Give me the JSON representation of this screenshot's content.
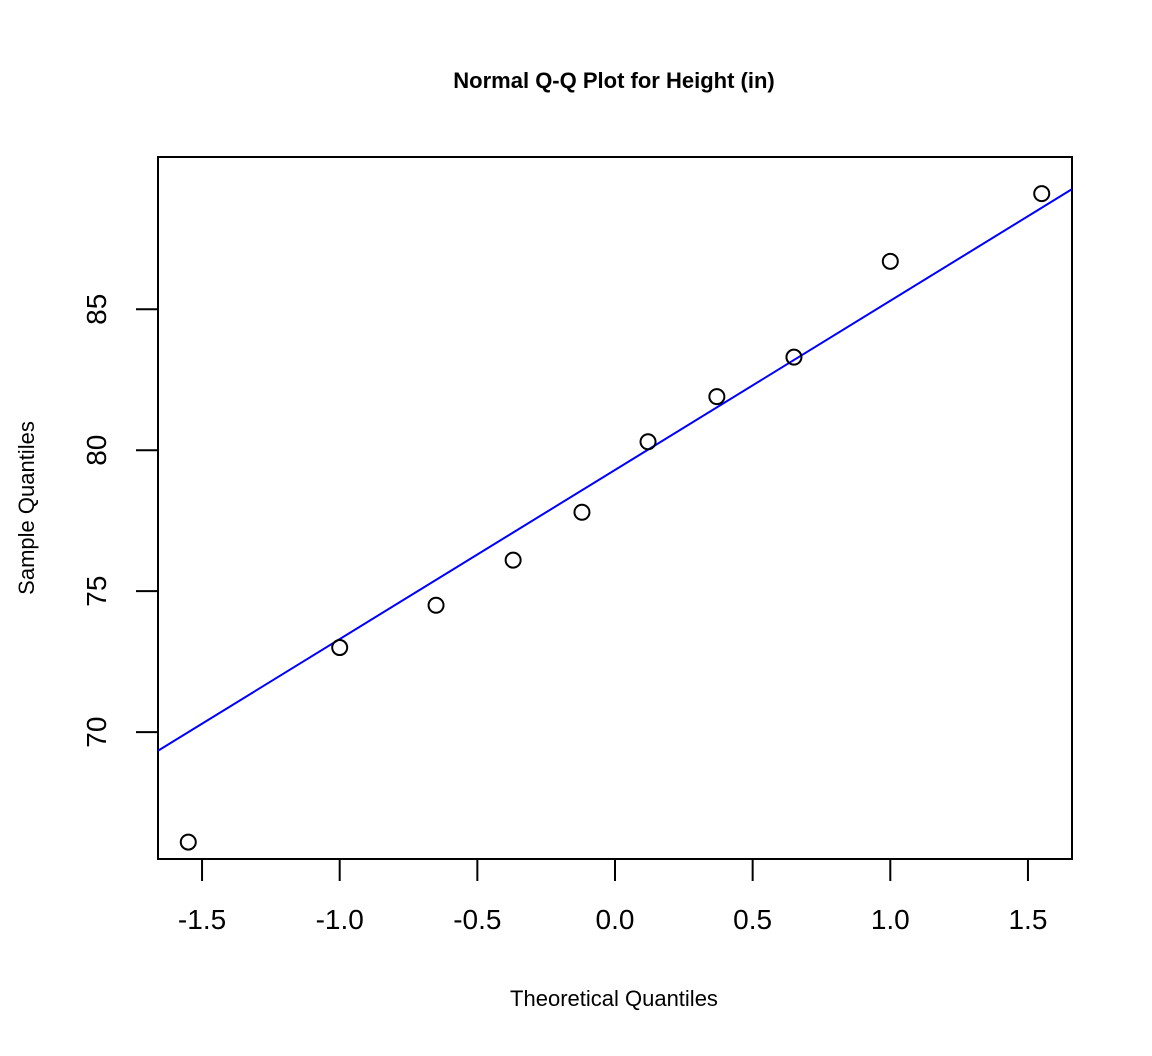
{
  "chart_data": {
    "type": "scatter",
    "title": "Normal Q-Q Plot for Height (in)",
    "xlabel": "Theoretical Quantiles",
    "ylabel": "Sample Quantiles",
    "xlim": [
      -1.66,
      1.66
    ],
    "ylim": [
      65.5,
      90.4
    ],
    "xticks": [
      -1.5,
      -1.0,
      -0.5,
      0.0,
      0.5,
      1.0,
      1.5
    ],
    "xtick_labels": [
      "-1.5",
      "-1.0",
      "-0.5",
      "0.0",
      "0.5",
      "1.0",
      "1.5"
    ],
    "yticks": [
      70,
      75,
      80,
      85
    ],
    "ytick_labels": [
      "70",
      "75",
      "80",
      "85"
    ],
    "grid": false,
    "marker": "open-circle",
    "series": [
      {
        "x": [
          -1.55,
          -1.0,
          -0.65,
          -0.37,
          -0.12,
          0.12,
          0.37,
          0.65,
          1.0,
          1.55
        ],
        "y": [
          66.1,
          73.0,
          74.5,
          76.1,
          77.8,
          80.3,
          81.9,
          83.3,
          86.7,
          89.1
        ]
      }
    ],
    "reference_line": {
      "intercept": 79.3,
      "slope": 6.0,
      "color": "#0000ff"
    },
    "point_color": "#000000",
    "axis_color": "#000000"
  }
}
